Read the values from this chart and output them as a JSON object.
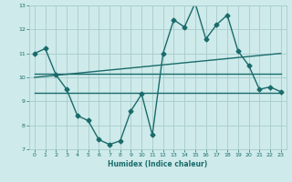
{
  "xlabel": "Humidex (Indice chaleur)",
  "background_color": "#ceeaea",
  "grid_color": "#a8cccc",
  "line_color": "#1a6b6b",
  "xlim": [
    -0.5,
    23.5
  ],
  "ylim": [
    7,
    13
  ],
  "xticks": [
    0,
    1,
    2,
    3,
    4,
    5,
    6,
    7,
    8,
    9,
    10,
    11,
    12,
    13,
    14,
    15,
    16,
    17,
    18,
    19,
    20,
    21,
    22,
    23
  ],
  "yticks": [
    7,
    8,
    9,
    10,
    11,
    12,
    13
  ],
  "series": [
    {
      "x": [
        0,
        1,
        2,
        3,
        4,
        5,
        6,
        7,
        8,
        9,
        10,
        11,
        12,
        13,
        14,
        15,
        16,
        17,
        18,
        19,
        20,
        21,
        22,
        23
      ],
      "y": [
        11.0,
        11.2,
        10.1,
        9.5,
        8.4,
        8.2,
        7.4,
        7.2,
        7.35,
        8.6,
        9.3,
        7.6,
        11.0,
        12.4,
        12.1,
        13.1,
        11.6,
        12.2,
        12.6,
        11.1,
        10.5,
        9.5,
        9.6,
        9.4
      ],
      "marker": "D",
      "markersize": 2.5,
      "linewidth": 1.0
    },
    {
      "x": [
        0,
        23
      ],
      "y": [
        10.15,
        10.15
      ],
      "marker": null,
      "linewidth": 1.0
    },
    {
      "x": [
        0,
        23
      ],
      "y": [
        9.35,
        9.35
      ],
      "marker": null,
      "linewidth": 1.0
    },
    {
      "x": [
        0,
        23
      ],
      "y": [
        10.0,
        11.0
      ],
      "marker": null,
      "linewidth": 1.0
    }
  ]
}
